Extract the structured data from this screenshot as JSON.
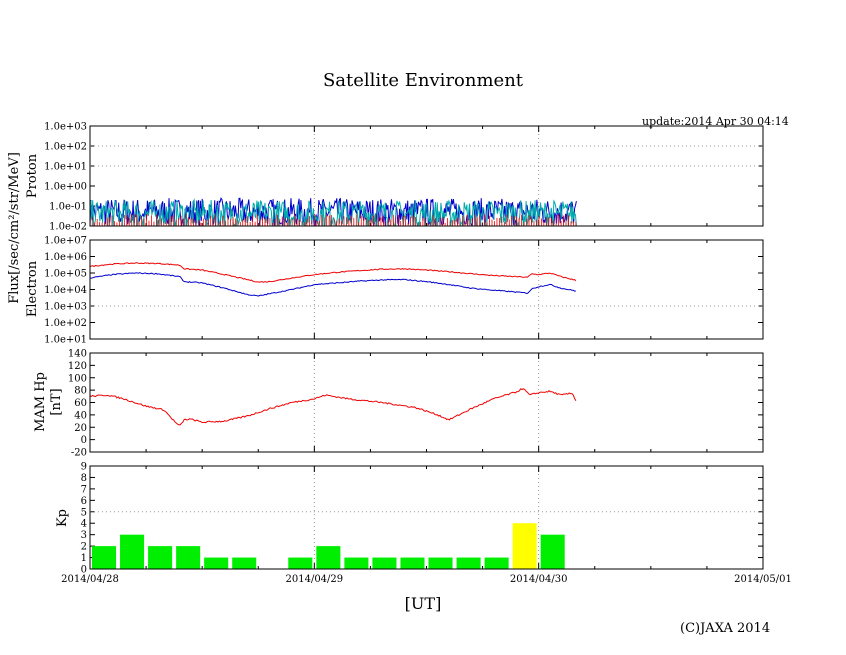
{
  "title": "Satellite Environment",
  "update": "update:2014 Apr 30 04:14",
  "xlabel": "[UT]",
  "copyright": "(C)JAXA 2014",
  "colors": {
    "red": "#ee0000",
    "blue": "#0000cc",
    "green": "#00ee00",
    "yellow": "#ffff00",
    "cyan": "#00aaaa"
  },
  "chart_data": [
    {
      "type": "line",
      "name": "proton",
      "ylabel": "Proton",
      "ylabel_shared": "Flux[/sec/cm²/str/MeV]",
      "yscale": "log",
      "ylim": [
        0.01,
        1000
      ],
      "ytick_labels": [
        "1.0e-02",
        "1.0e-01",
        "1.0e+00",
        "1.0e+01",
        "1.0e+02",
        "1.0e+03"
      ],
      "x_range_days": [
        0,
        3
      ],
      "x": [
        0,
        0.25,
        0.5,
        0.75,
        1.0,
        1.25,
        1.5,
        1.75,
        2.0,
        2.17
      ],
      "series": [
        {
          "name": "proton-blue",
          "color": "blue",
          "values": [
            0.05,
            0.05,
            0.05,
            0.05,
            0.05,
            0.05,
            0.05,
            0.05,
            0.05,
            0.05
          ]
        },
        {
          "name": "proton-green",
          "color": "cyan",
          "values": [
            0.04,
            0.04,
            0.04,
            0.04,
            0.04,
            0.04,
            0.04,
            0.04,
            0.04,
            0.04
          ]
        }
      ]
    },
    {
      "type": "line",
      "name": "electron",
      "ylabel": "Electron",
      "yscale": "log",
      "ylim": [
        10,
        10000000
      ],
      "ytick_labels": [
        "1.0e+01",
        "1.0e+02",
        "1.0e+03",
        "1.0e+04",
        "1.0e+05",
        "1.0e+06",
        "1.0e+07"
      ],
      "x_range_days": [
        0,
        3
      ],
      "x": [
        0,
        0.1,
        0.2,
        0.3,
        0.4,
        0.42,
        0.5,
        0.6,
        0.7,
        0.75,
        0.8,
        0.9,
        1.0,
        1.1,
        1.2,
        1.3,
        1.4,
        1.5,
        1.6,
        1.7,
        1.8,
        1.9,
        1.95,
        1.97,
        2.0,
        2.05,
        2.1,
        2.17
      ],
      "series": [
        {
          "name": "electron-red",
          "color": "red",
          "values": [
            250000,
            350000,
            400000,
            380000,
            300000,
            180000,
            150000,
            80000,
            40000,
            28000,
            30000,
            50000,
            80000,
            110000,
            140000,
            170000,
            180000,
            150000,
            120000,
            90000,
            70000,
            60000,
            55000,
            90000,
            80000,
            100000,
            60000,
            35000
          ]
        },
        {
          "name": "electron-blue",
          "color": "blue",
          "values": [
            50000,
            80000,
            100000,
            90000,
            60000,
            30000,
            25000,
            12000,
            5000,
            4000,
            5500,
            10000,
            20000,
            25000,
            32000,
            38000,
            40000,
            30000,
            20000,
            12000,
            9000,
            7000,
            6000,
            11000,
            15000,
            20000,
            12000,
            8000
          ]
        }
      ]
    },
    {
      "type": "line",
      "name": "mam-hp",
      "ylabel": "MAM Hp",
      "ylabel2": "[nT]",
      "ylim": [
        -20,
        140
      ],
      "yticks": [
        -20,
        0,
        20,
        40,
        60,
        80,
        100,
        120,
        140
      ],
      "x_range_days": [
        0,
        3
      ],
      "x": [
        0,
        0.08,
        0.15,
        0.25,
        0.33,
        0.38,
        0.4,
        0.42,
        0.45,
        0.5,
        0.6,
        0.7,
        0.8,
        0.9,
        1.0,
        1.05,
        1.15,
        1.3,
        1.45,
        1.55,
        1.6,
        1.7,
        1.8,
        1.9,
        1.93,
        1.96,
        2.0,
        2.05,
        2.1,
        2.15,
        2.17
      ],
      "series": [
        {
          "name": "hp-red",
          "color": "red",
          "values": [
            70,
            72,
            66,
            54,
            48,
            28,
            22,
            32,
            33,
            28,
            30,
            38,
            50,
            60,
            66,
            72,
            66,
            60,
            52,
            40,
            32,
            50,
            66,
            77,
            83,
            72,
            76,
            78,
            72,
            75,
            60
          ]
        }
      ]
    },
    {
      "type": "bar",
      "name": "kp",
      "ylabel": "Kp",
      "ylim": [
        0,
        9
      ],
      "yticks": [
        0,
        1,
        2,
        3,
        4,
        5,
        6,
        7,
        8,
        9
      ],
      "x_range_days": [
        0,
        3
      ],
      "bin_days": 0.125,
      "values": [
        2,
        3,
        2,
        2,
        1,
        1,
        null,
        1,
        2,
        1,
        1,
        1,
        1,
        1,
        1,
        4,
        3
      ],
      "bar_colors": [
        "green",
        "green",
        "green",
        "green",
        "green",
        "green",
        "green",
        "green",
        "green",
        "green",
        "green",
        "green",
        "green",
        "green",
        "green",
        "yellow",
        "green"
      ]
    }
  ],
  "x_tick_labels": [
    "2014/04/28",
    "2014/04/29",
    "2014/04/30",
    "2014/05/01"
  ]
}
